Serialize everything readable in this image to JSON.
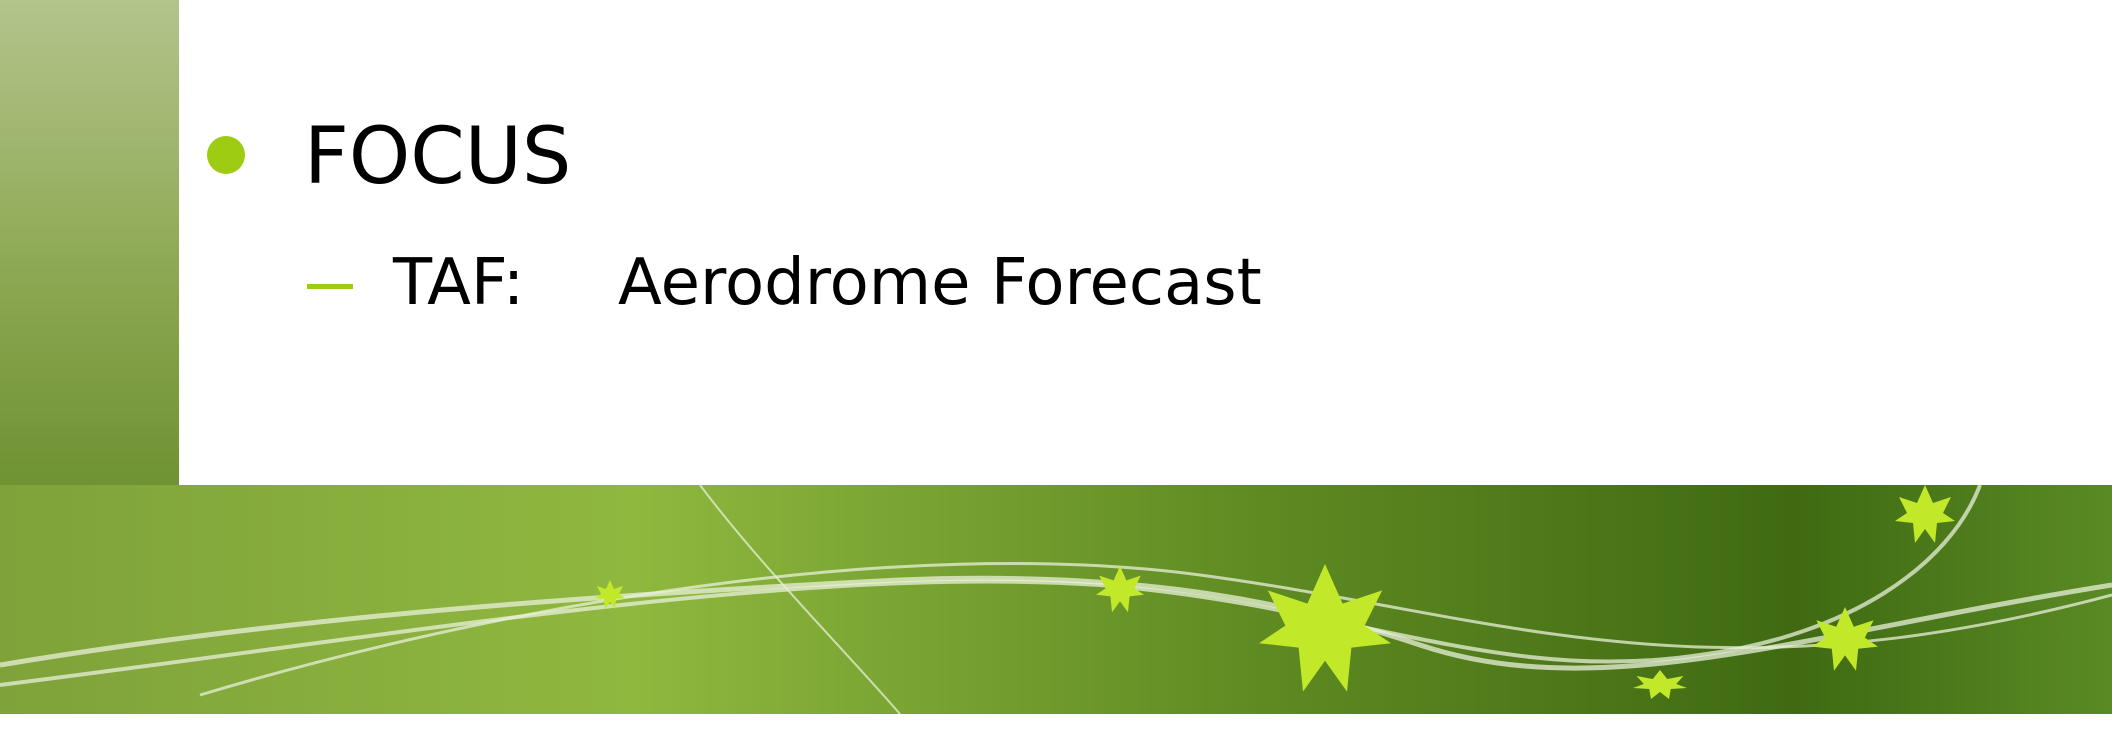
{
  "slide": {
    "bullet": {
      "text": "FOCUS",
      "sub": {
        "label": "TAF:",
        "text": "Aerodrome Forecast"
      }
    }
  }
}
